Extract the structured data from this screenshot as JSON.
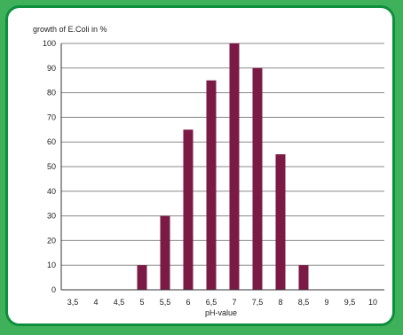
{
  "chart_data": {
    "type": "bar",
    "ylabel": "growth of E.Coli  in %",
    "xlabel": "pH-value",
    "categories": [
      "3,5",
      "4",
      "4,5",
      "5",
      "5,5",
      "6",
      "6,5",
      "7",
      "7,5",
      "8",
      "8,5",
      "9",
      "9,5",
      "10"
    ],
    "values": [
      0,
      0,
      0,
      10,
      30,
      65,
      85,
      100,
      90,
      55,
      10,
      0,
      0,
      0
    ],
    "ylim": [
      0,
      100
    ],
    "yticks": [
      0,
      10,
      20,
      30,
      40,
      50,
      60,
      70,
      80,
      90,
      100
    ],
    "grid": true,
    "bar_color": "#7a1a45"
  },
  "colors": {
    "background": "#3fb15a",
    "frame_border": "#0e8f3c",
    "panel": "#ffffff"
  }
}
